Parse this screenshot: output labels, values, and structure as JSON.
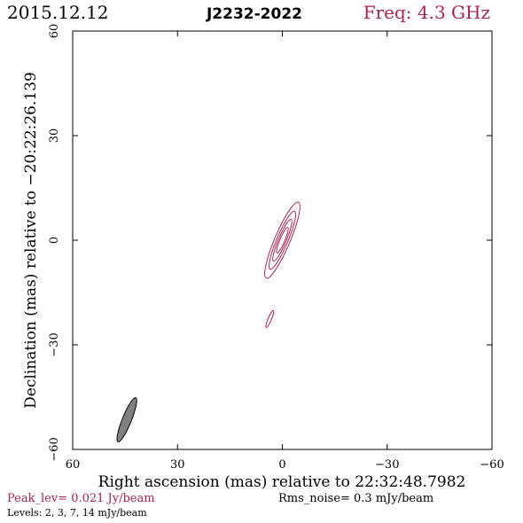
{
  "header": {
    "date": "2015.12.12",
    "source": "J2232-2022",
    "freq": "Freq: 4.3 GHz"
  },
  "footer": {
    "peak": "Peak_lev=  0.021 Jy/beam",
    "rms": "Rms_noise=   0.3 mJy/beam",
    "levels": "Levels:   2,    3,    7,   14  mJy/beam"
  },
  "colors": {
    "accent": "#a8264a",
    "frame": "#000000",
    "beam_fill": "#808080"
  },
  "chart_data": {
    "type": "contour",
    "xlabel": "Right ascension (mas) relative to 22:32:48.7982",
    "ylabel": "Declination (mas) relative to −20:22:26.139",
    "xlim": [
      60,
      -60
    ],
    "ylim": [
      -60,
      60
    ],
    "x_ticks": [
      60,
      30,
      0,
      -30,
      -60
    ],
    "x_tick_labels": [
      "60",
      "30",
      "0",
      "−30",
      "−60"
    ],
    "y_ticks": [
      -60,
      -30,
      0,
      30,
      60
    ],
    "y_tick_labels": [
      "−60",
      "−30",
      "0",
      "30",
      "60"
    ],
    "contour_levels_mJy": [
      2,
      3,
      7,
      14
    ],
    "components": [
      {
        "name": "core",
        "center": [
          0,
          0
        ],
        "contours": [
          {
            "rx": 11.8,
            "ry": 2.2,
            "angle_deg": -67
          },
          {
            "rx": 9.0,
            "ry": 1.6,
            "angle_deg": -67
          },
          {
            "rx": 6.5,
            "ry": 1.1,
            "angle_deg": -67
          },
          {
            "rx": 4.0,
            "ry": 0.7,
            "angle_deg": -67
          }
        ]
      },
      {
        "name": "knot",
        "center": [
          3.6,
          -22.6
        ],
        "contours": [
          {
            "rx": 2.6,
            "ry": 0.5,
            "angle_deg": -67
          }
        ]
      }
    ],
    "beam": {
      "center": [
        44.5,
        -51.5
      ],
      "rx": 6.8,
      "ry": 1.3,
      "angle_deg": -68
    }
  }
}
